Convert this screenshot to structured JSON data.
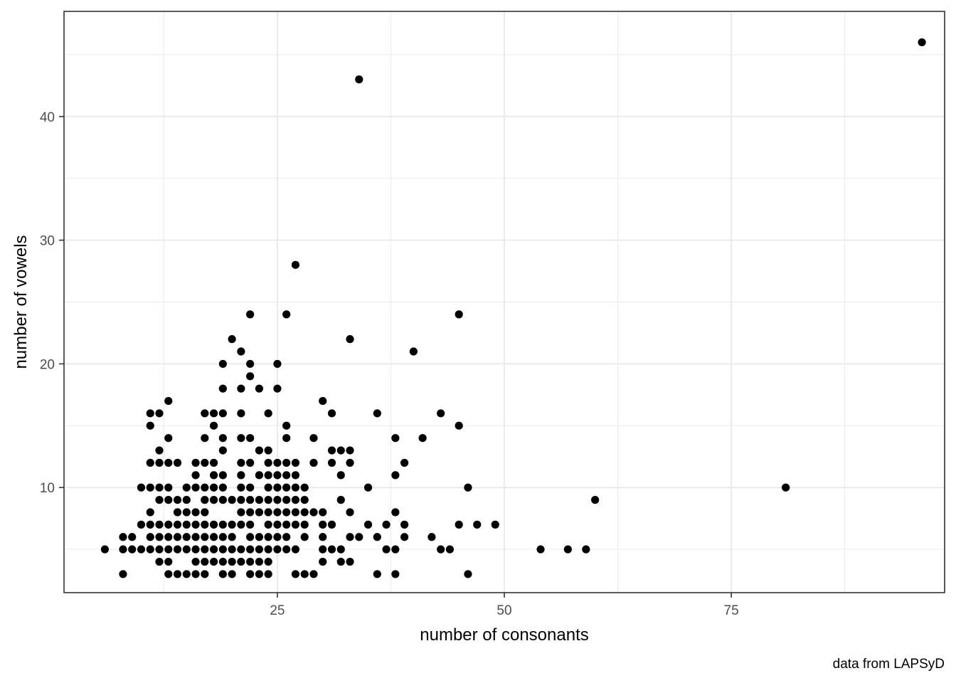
{
  "chart_data": {
    "type": "scatter",
    "title": "",
    "xlabel": "number of consonants",
    "ylabel": "number of vowels",
    "caption": "data from LAPSyD",
    "xlim": [
      1.5,
      98.5
    ],
    "ylim": [
      1.5,
      48.5
    ],
    "x_ticks": [
      25,
      50,
      75
    ],
    "y_ticks": [
      10,
      20,
      30,
      40
    ],
    "grid": true,
    "point_color": "#000000",
    "points": [
      [
        6,
        5
      ],
      [
        8,
        3
      ],
      [
        8,
        5
      ],
      [
        8,
        6
      ],
      [
        9,
        5
      ],
      [
        9,
        6
      ],
      [
        10,
        5
      ],
      [
        10,
        7
      ],
      [
        10,
        10
      ],
      [
        11,
        5
      ],
      [
        11,
        6
      ],
      [
        11,
        7
      ],
      [
        11,
        8
      ],
      [
        11,
        10
      ],
      [
        11,
        12
      ],
      [
        11,
        15
      ],
      [
        11,
        16
      ],
      [
        12,
        4
      ],
      [
        12,
        5
      ],
      [
        12,
        6
      ],
      [
        12,
        7
      ],
      [
        12,
        9
      ],
      [
        12,
        10
      ],
      [
        12,
        12
      ],
      [
        12,
        13
      ],
      [
        12,
        16
      ],
      [
        13,
        3
      ],
      [
        13,
        4
      ],
      [
        13,
        5
      ],
      [
        13,
        6
      ],
      [
        13,
        7
      ],
      [
        13,
        9
      ],
      [
        13,
        10
      ],
      [
        13,
        12
      ],
      [
        13,
        14
      ],
      [
        13,
        17
      ],
      [
        14,
        3
      ],
      [
        14,
        5
      ],
      [
        14,
        6
      ],
      [
        14,
        7
      ],
      [
        14,
        8
      ],
      [
        14,
        9
      ],
      [
        14,
        12
      ],
      [
        15,
        3
      ],
      [
        15,
        5
      ],
      [
        15,
        6
      ],
      [
        15,
        7
      ],
      [
        15,
        8
      ],
      [
        15,
        9
      ],
      [
        15,
        10
      ],
      [
        16,
        3
      ],
      [
        16,
        4
      ],
      [
        16,
        5
      ],
      [
        16,
        6
      ],
      [
        16,
        7
      ],
      [
        16,
        8
      ],
      [
        16,
        10
      ],
      [
        16,
        11
      ],
      [
        16,
        12
      ],
      [
        17,
        3
      ],
      [
        17,
        4
      ],
      [
        17,
        5
      ],
      [
        17,
        6
      ],
      [
        17,
        7
      ],
      [
        17,
        8
      ],
      [
        17,
        9
      ],
      [
        17,
        10
      ],
      [
        17,
        12
      ],
      [
        17,
        14
      ],
      [
        17,
        16
      ],
      [
        18,
        4
      ],
      [
        18,
        5
      ],
      [
        18,
        6
      ],
      [
        18,
        7
      ],
      [
        18,
        9
      ],
      [
        18,
        10
      ],
      [
        18,
        11
      ],
      [
        18,
        12
      ],
      [
        18,
        15
      ],
      [
        18,
        16
      ],
      [
        19,
        3
      ],
      [
        19,
        4
      ],
      [
        19,
        5
      ],
      [
        19,
        6
      ],
      [
        19,
        7
      ],
      [
        19,
        9
      ],
      [
        19,
        10
      ],
      [
        19,
        11
      ],
      [
        19,
        13
      ],
      [
        19,
        14
      ],
      [
        19,
        16
      ],
      [
        19,
        18
      ],
      [
        19,
        20
      ],
      [
        20,
        3
      ],
      [
        20,
        4
      ],
      [
        20,
        5
      ],
      [
        20,
        6
      ],
      [
        20,
        7
      ],
      [
        20,
        9
      ],
      [
        20,
        22
      ],
      [
        21,
        4
      ],
      [
        21,
        5
      ],
      [
        21,
        7
      ],
      [
        21,
        8
      ],
      [
        21,
        9
      ],
      [
        21,
        10
      ],
      [
        21,
        11
      ],
      [
        21,
        12
      ],
      [
        21,
        14
      ],
      [
        21,
        16
      ],
      [
        21,
        18
      ],
      [
        21,
        21
      ],
      [
        22,
        3
      ],
      [
        22,
        4
      ],
      [
        22,
        5
      ],
      [
        22,
        6
      ],
      [
        22,
        7
      ],
      [
        22,
        8
      ],
      [
        22,
        9
      ],
      [
        22,
        10
      ],
      [
        22,
        12
      ],
      [
        22,
        14
      ],
      [
        22,
        19
      ],
      [
        22,
        20
      ],
      [
        22,
        24
      ],
      [
        23,
        3
      ],
      [
        23,
        4
      ],
      [
        23,
        5
      ],
      [
        23,
        6
      ],
      [
        23,
        8
      ],
      [
        23,
        9
      ],
      [
        23,
        11
      ],
      [
        23,
        13
      ],
      [
        23,
        18
      ],
      [
        24,
        3
      ],
      [
        24,
        4
      ],
      [
        24,
        5
      ],
      [
        24,
        6
      ],
      [
        24,
        7
      ],
      [
        24,
        8
      ],
      [
        24,
        9
      ],
      [
        24,
        10
      ],
      [
        24,
        11
      ],
      [
        24,
        12
      ],
      [
        24,
        13
      ],
      [
        24,
        16
      ],
      [
        25,
        5
      ],
      [
        25,
        6
      ],
      [
        25,
        7
      ],
      [
        25,
        8
      ],
      [
        25,
        9
      ],
      [
        25,
        10
      ],
      [
        25,
        11
      ],
      [
        25,
        12
      ],
      [
        25,
        18
      ],
      [
        25,
        20
      ],
      [
        26,
        5
      ],
      [
        26,
        6
      ],
      [
        26,
        7
      ],
      [
        26,
        8
      ],
      [
        26,
        9
      ],
      [
        26,
        10
      ],
      [
        26,
        11
      ],
      [
        26,
        12
      ],
      [
        26,
        14
      ],
      [
        26,
        15
      ],
      [
        26,
        24
      ],
      [
        27,
        3
      ],
      [
        27,
        5
      ],
      [
        27,
        7
      ],
      [
        27,
        8
      ],
      [
        27,
        9
      ],
      [
        27,
        10
      ],
      [
        27,
        11
      ],
      [
        27,
        12
      ],
      [
        27,
        28
      ],
      [
        28,
        3
      ],
      [
        28,
        6
      ],
      [
        28,
        7
      ],
      [
        28,
        8
      ],
      [
        28,
        9
      ],
      [
        28,
        10
      ],
      [
        29,
        3
      ],
      [
        29,
        8
      ],
      [
        29,
        12
      ],
      [
        29,
        14
      ],
      [
        30,
        4
      ],
      [
        30,
        5
      ],
      [
        30,
        6
      ],
      [
        30,
        7
      ],
      [
        30,
        8
      ],
      [
        30,
        17
      ],
      [
        31,
        5
      ],
      [
        31,
        7
      ],
      [
        31,
        12
      ],
      [
        31,
        13
      ],
      [
        31,
        16
      ],
      [
        32,
        4
      ],
      [
        32,
        5
      ],
      [
        32,
        9
      ],
      [
        32,
        11
      ],
      [
        32,
        13
      ],
      [
        33,
        4
      ],
      [
        33,
        6
      ],
      [
        33,
        8
      ],
      [
        33,
        12
      ],
      [
        33,
        13
      ],
      [
        33,
        22
      ],
      [
        34,
        6
      ],
      [
        34,
        43
      ],
      [
        35,
        7
      ],
      [
        35,
        10
      ],
      [
        36,
        3
      ],
      [
        36,
        6
      ],
      [
        36,
        16
      ],
      [
        37,
        5
      ],
      [
        37,
        7
      ],
      [
        38,
        3
      ],
      [
        38,
        5
      ],
      [
        38,
        8
      ],
      [
        38,
        11
      ],
      [
        38,
        14
      ],
      [
        39,
        6
      ],
      [
        39,
        7
      ],
      [
        39,
        12
      ],
      [
        40,
        21
      ],
      [
        41,
        14
      ],
      [
        42,
        6
      ],
      [
        43,
        5
      ],
      [
        43,
        16
      ],
      [
        44,
        5
      ],
      [
        45,
        7
      ],
      [
        45,
        15
      ],
      [
        45,
        24
      ],
      [
        46,
        3
      ],
      [
        46,
        10
      ],
      [
        47,
        7
      ],
      [
        49,
        7
      ],
      [
        54,
        5
      ],
      [
        57,
        5
      ],
      [
        59,
        5
      ],
      [
        60,
        9
      ],
      [
        81,
        10
      ],
      [
        96,
        46
      ]
    ]
  }
}
